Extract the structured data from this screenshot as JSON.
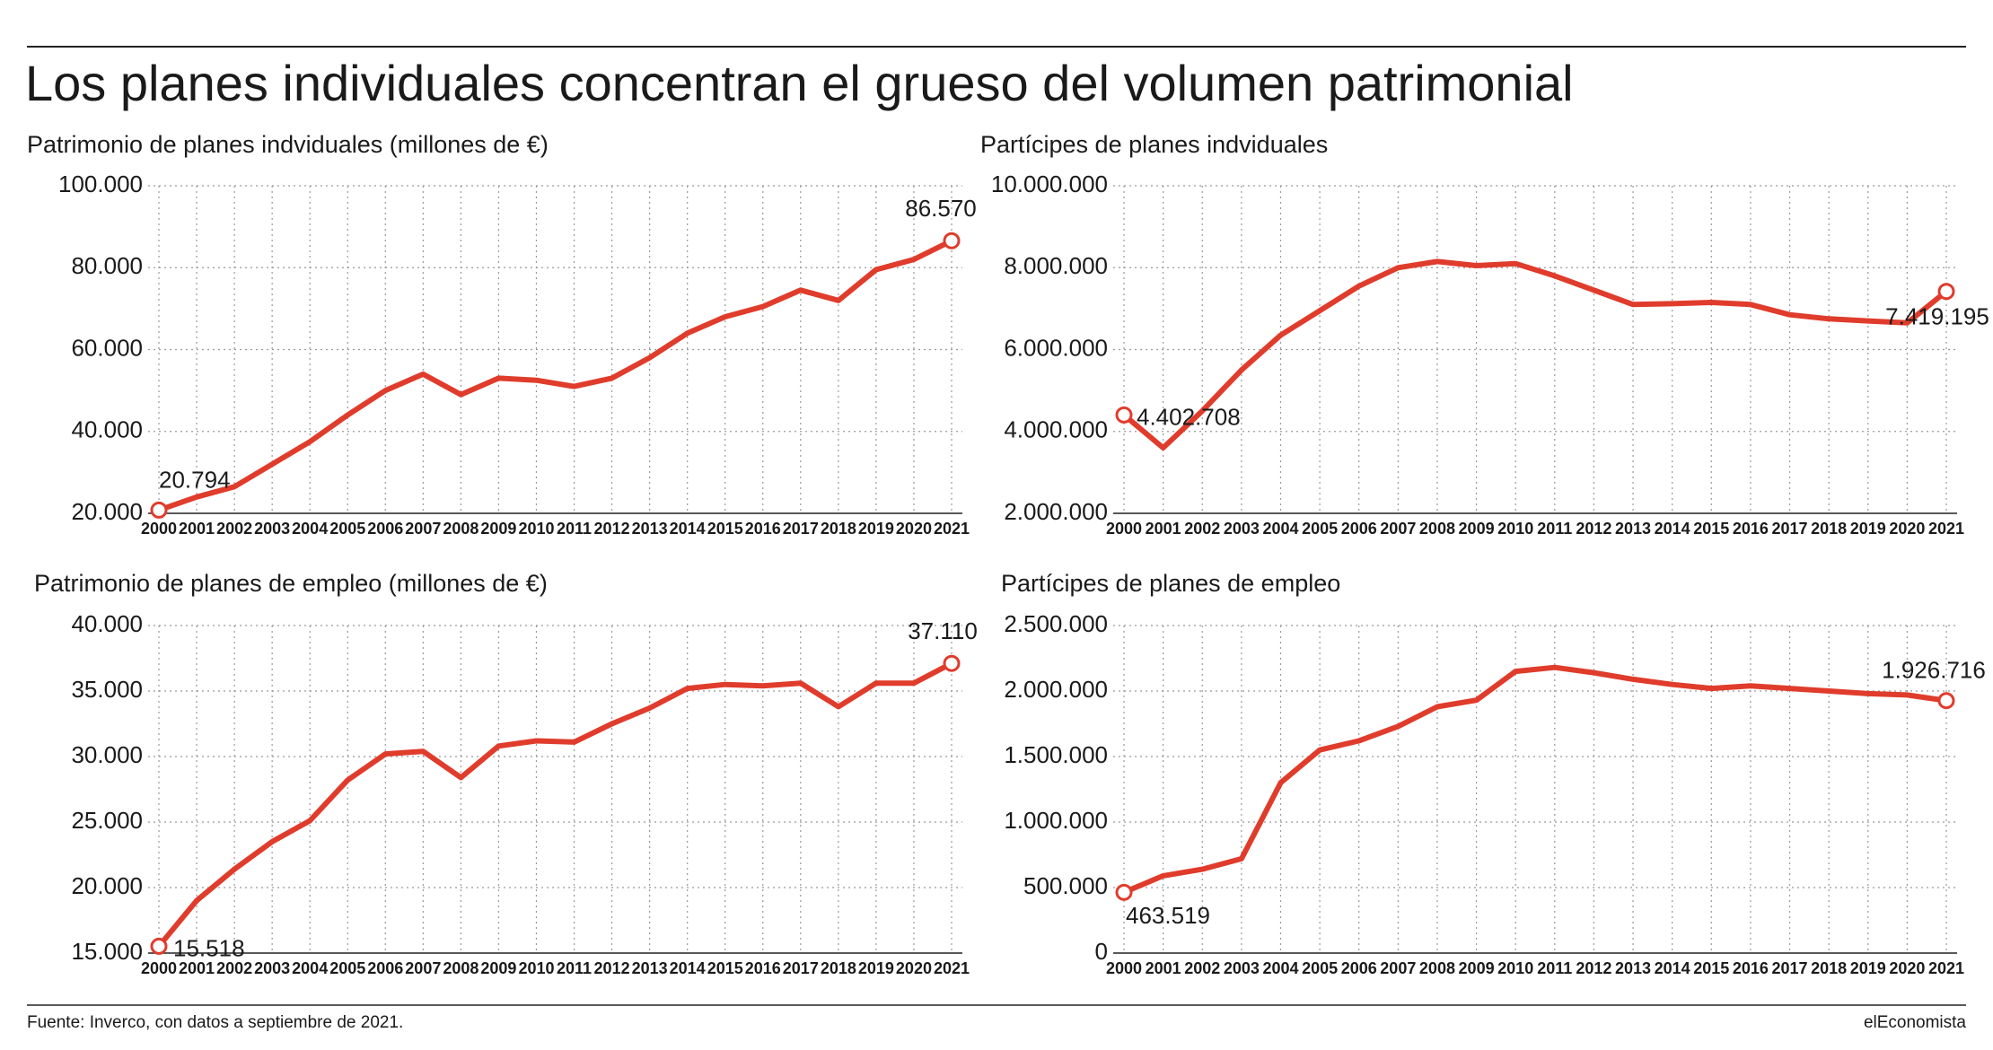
{
  "title": "Los planes individuales concentran el grueso del volumen patrimonial",
  "source": "Fuente: Inverco, con datos a septiembre de 2021.",
  "brand": "elEconomista",
  "chart_data": [
    {
      "type": "line",
      "title": "Patrimonio de planes indviduales (millones de €)",
      "categories": [
        "2000",
        "2001",
        "2002",
        "2003",
        "2004",
        "2005",
        "2006",
        "2007",
        "2008",
        "2009",
        "2010",
        "2011",
        "2012",
        "2013",
        "2014",
        "2015",
        "2016",
        "2017",
        "2018",
        "2019",
        "2020",
        "2021"
      ],
      "values": [
        20794,
        24000,
        26500,
        32000,
        37500,
        44000,
        50000,
        54000,
        49000,
        53000,
        52500,
        51000,
        53000,
        58000,
        64000,
        68000,
        70500,
        74500,
        72000,
        79500,
        82000,
        86570
      ],
      "value_labels": [
        "20.794",
        null,
        null,
        null,
        null,
        null,
        null,
        null,
        null,
        null,
        null,
        null,
        null,
        null,
        null,
        null,
        null,
        null,
        null,
        null,
        null,
        "86.570"
      ],
      "color": "#e03c2c",
      "ylim": [
        20000,
        100000
      ],
      "yticks": [
        {
          "value": 20000,
          "label": "20.000"
        },
        {
          "value": 40000,
          "label": "40.000"
        },
        {
          "value": 60000,
          "label": "60.000"
        },
        {
          "value": 80000,
          "label": "80.000"
        },
        {
          "value": 100000,
          "label": "100.000"
        }
      ],
      "grid": true
    },
    {
      "type": "line",
      "title": "Partícipes de planes indviduales",
      "categories": [
        "2000",
        "2001",
        "2002",
        "2003",
        "2004",
        "2005",
        "2006",
        "2007",
        "2008",
        "2009",
        "2010",
        "2011",
        "2012",
        "2013",
        "2014",
        "2015",
        "2016",
        "2017",
        "2018",
        "2019",
        "2020",
        "2021"
      ],
      "values": [
        4402708,
        3600000,
        4500000,
        5500000,
        6350000,
        6950000,
        7550000,
        8000000,
        8150000,
        8050000,
        8100000,
        7800000,
        7450000,
        7100000,
        7120000,
        7150000,
        7100000,
        6850000,
        6750000,
        6700000,
        6650000,
        7419195
      ],
      "value_labels": [
        "4.402.708",
        null,
        null,
        null,
        null,
        null,
        null,
        null,
        null,
        null,
        null,
        null,
        null,
        null,
        null,
        null,
        null,
        null,
        null,
        null,
        null,
        "7.419.195"
      ],
      "color": "#e03c2c",
      "ylim": [
        2000000,
        10000000
      ],
      "yticks": [
        {
          "value": 2000000,
          "label": "2.000.000"
        },
        {
          "value": 4000000,
          "label": "4.000.000"
        },
        {
          "value": 6000000,
          "label": "6.000.000"
        },
        {
          "value": 8000000,
          "label": "8.000.000"
        },
        {
          "value": 10000000,
          "label": "10.000.000"
        }
      ],
      "grid": true
    },
    {
      "type": "line",
      "title": "Patrimonio de planes de empleo (millones de €)",
      "categories": [
        "2000",
        "2001",
        "2002",
        "2003",
        "2004",
        "2005",
        "2006",
        "2007",
        "2008",
        "2009",
        "2010",
        "2011",
        "2012",
        "2013",
        "2014",
        "2015",
        "2016",
        "2017",
        "2018",
        "2019",
        "2020",
        "2021"
      ],
      "values": [
        15518,
        19000,
        21400,
        23500,
        25100,
        28200,
        30200,
        30400,
        28400,
        30800,
        31200,
        31100,
        32500,
        33700,
        35200,
        35500,
        35400,
        35600,
        33800,
        35600,
        35600,
        37110
      ],
      "value_labels": [
        "15.518",
        null,
        null,
        null,
        null,
        null,
        null,
        null,
        null,
        null,
        null,
        null,
        null,
        null,
        null,
        null,
        null,
        null,
        null,
        null,
        null,
        "37.110"
      ],
      "color": "#e03c2c",
      "ylim": [
        15000,
        40000
      ],
      "yticks": [
        {
          "value": 15000,
          "label": "15.000"
        },
        {
          "value": 20000,
          "label": "20.000"
        },
        {
          "value": 25000,
          "label": "25.000"
        },
        {
          "value": 30000,
          "label": "30.000"
        },
        {
          "value": 35000,
          "label": "35.000"
        },
        {
          "value": 40000,
          "label": "40.000"
        }
      ],
      "grid": true
    },
    {
      "type": "line",
      "title": "Partícipes de planes de empleo",
      "categories": [
        "2000",
        "2001",
        "2002",
        "2003",
        "2004",
        "2005",
        "2006",
        "2007",
        "2008",
        "2009",
        "2010",
        "2011",
        "2012",
        "2013",
        "2014",
        "2015",
        "2016",
        "2017",
        "2018",
        "2019",
        "2020",
        "2021"
      ],
      "values": [
        463519,
        590000,
        640000,
        720000,
        1300000,
        1550000,
        1620000,
        1730000,
        1880000,
        1930000,
        2150000,
        2180000,
        2140000,
        2090000,
        2050000,
        2020000,
        2040000,
        2020000,
        2000000,
        1980000,
        1970000,
        1926716
      ],
      "value_labels": [
        "463.519",
        null,
        null,
        null,
        null,
        null,
        null,
        null,
        null,
        null,
        null,
        null,
        null,
        null,
        null,
        null,
        null,
        null,
        null,
        null,
        null,
        "1.926.716"
      ],
      "color": "#e03c2c",
      "ylim": [
        0,
        2500000
      ],
      "yticks": [
        0,
        {
          "value": 500000,
          "label": "500.000"
        },
        {
          "value": 1000000,
          "label": "1.000.000"
        },
        {
          "value": 1500000,
          "label": "1.500.000"
        },
        {
          "value": 2000000,
          "label": "2.000.000"
        },
        {
          "value": 2500000,
          "label": "2.500.000"
        }
      ],
      "grid": true
    }
  ]
}
